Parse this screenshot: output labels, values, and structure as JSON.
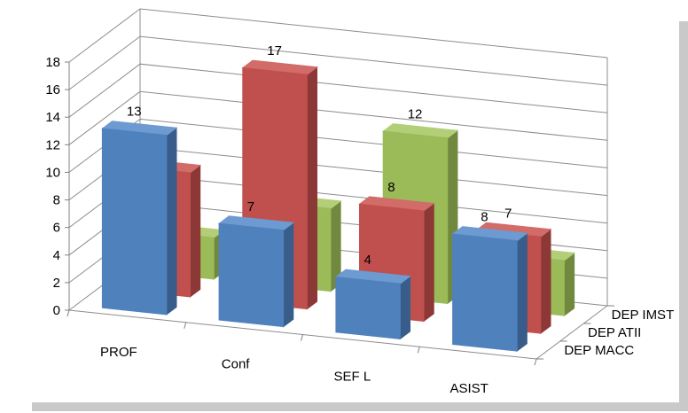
{
  "chart_data": {
    "type": "bar",
    "categories": [
      "PROF",
      "Conf",
      "SEF L",
      "ASIST"
    ],
    "series": [
      {
        "name": "DEP MACC",
        "values": [
          13,
          7,
          4,
          8
        ],
        "color": "#4f81bd",
        "top": "#6d9ad0",
        "side": "#385d8a"
      },
      {
        "name": "DEP ATII",
        "values": [
          9,
          17,
          8,
          7
        ],
        "color": "#c0504d",
        "top": "#d16c69",
        "side": "#8c3836"
      },
      {
        "name": "DEP IMST",
        "values": [
          3,
          6,
          12,
          4
        ],
        "color": "#9bbb59",
        "top": "#b2cf77",
        "side": "#71893f"
      }
    ],
    "ylim": [
      0,
      18
    ],
    "yticks": [
      "0",
      "2",
      "4",
      "6",
      "8",
      "10",
      "12",
      "14",
      "16",
      "18"
    ],
    "grid": true,
    "xlabel": "",
    "ylabel": "",
    "title": ""
  }
}
